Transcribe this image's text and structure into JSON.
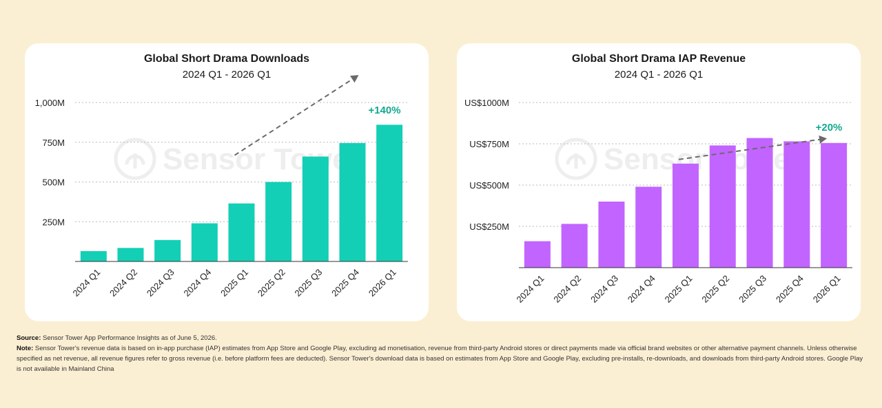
{
  "chart_data": [
    {
      "type": "bar",
      "title": "Global Short Drama Downloads",
      "subtitle": "2024 Q1 - 2026 Q1",
      "categories": [
        "2024 Q1",
        "2024 Q2",
        "2024 Q3",
        "2024 Q4",
        "2025 Q1",
        "2025 Q2",
        "2025 Q3",
        "2025 Q4",
        "2026 Q1"
      ],
      "values": [
        65,
        85,
        135,
        240,
        365,
        500,
        660,
        745,
        860
      ],
      "unit": "M",
      "ylim": [
        0,
        1000
      ],
      "yticks": [
        250,
        500,
        750,
        1000
      ],
      "ytick_labels": [
        "250M",
        "500M",
        "750M",
        "1,000M"
      ],
      "color": "#13cfb6",
      "growth_label": "+140%",
      "growth_color": "#12a98f",
      "trend_from_index": 4,
      "trend_to_index": 8,
      "grid": true,
      "watermark": "Sensor Tower"
    },
    {
      "type": "bar",
      "title": "Global Short Drama IAP Revenue",
      "subtitle": "2024 Q1 - 2026 Q1",
      "categories": [
        "2024 Q1",
        "2024 Q2",
        "2024 Q3",
        "2024 Q4",
        "2025 Q1",
        "2025 Q2",
        "2025 Q3",
        "2025 Q4",
        "2026 Q1"
      ],
      "values": [
        160,
        265,
        400,
        490,
        630,
        740,
        785,
        765,
        755
      ],
      "unit": "US$M",
      "ylim": [
        0,
        1000
      ],
      "yticks": [
        250,
        500,
        750,
        1000
      ],
      "ytick_labels": [
        "US$250M",
        "US$500M",
        "US$750M",
        "US$1000M"
      ],
      "color": "#c264ff",
      "growth_label": "+20%",
      "growth_color": "#12a98f",
      "trend_from_index": 4,
      "trend_to_index": 8,
      "grid": true,
      "watermark": "Sensor Tower"
    }
  ],
  "notes": {
    "source_label": "Source:",
    "source_text": " Sensor Tower App Performance Insights as of June 5, 2026.",
    "note_label": "Note:",
    "note_text": " Sensor Tower's revenue data is based on in-app purchase (IAP) estimates from App Store and Google Play, excluding ad monetisation, revenue from third-party Android stores or direct payments made via official brand websites or other alternative payment channels. Unless otherwise specified as net revenue, all revenue figures refer to gross revenue (i.e. before platform fees are deducted). Sensor Tower's download data is based on estimates from App Store and Google Play, excluding pre-installs, re-downloads, and downloads from third-party Android stores. Google Play is not available in Mainland China"
  }
}
